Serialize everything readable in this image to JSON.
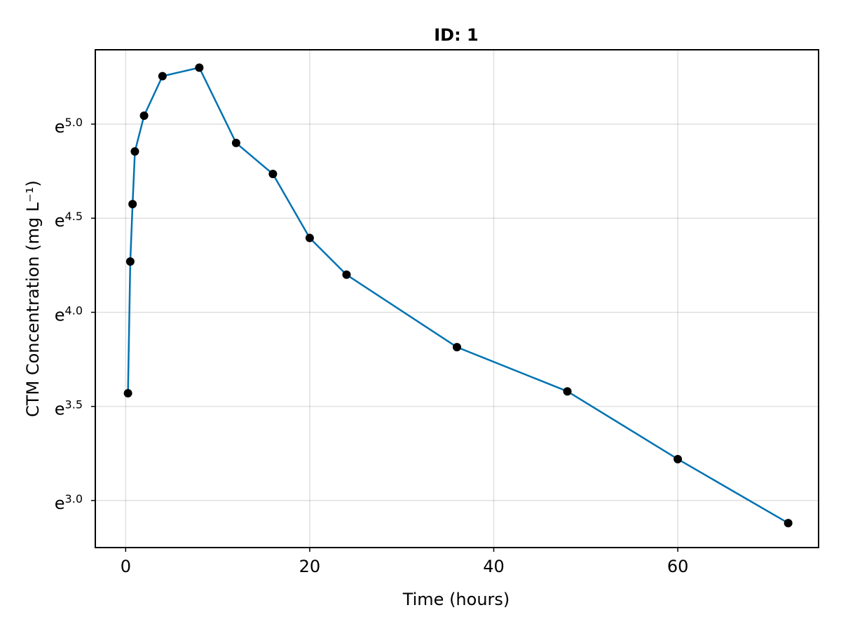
{
  "chart_data": {
    "type": "line",
    "title": "ID: 1",
    "xlabel": "Time (hours)",
    "ylabel": "CTM Concentration (mg L⁻¹)",
    "y_scale": "log",
    "xlim": [
      -3.3,
      75.3
    ],
    "ylim_log": [
      2.75,
      5.395
    ],
    "x_ticks": [
      0,
      20,
      40,
      60
    ],
    "x_tick_labels": [
      "0",
      "20",
      "40",
      "60"
    ],
    "y_ticks_log": [
      3.0,
      3.5,
      4.0,
      4.5,
      5.0
    ],
    "y_tick_base": "e",
    "y_tick_exponents": [
      "3.0",
      "3.5",
      "4.0",
      "4.5",
      "5.0"
    ],
    "grid": true,
    "line_color": "#0072b2",
    "marker_color": "#000000",
    "series": [
      {
        "x": [
          0.25,
          0.5,
          0.75,
          1,
          2,
          4,
          8,
          12,
          16,
          20,
          24,
          36,
          48,
          60,
          72
        ],
        "y_log": [
          3.57,
          4.27,
          4.575,
          4.855,
          5.045,
          5.255,
          5.3,
          4.9,
          4.735,
          4.395,
          4.2,
          3.815,
          3.58,
          3.22,
          2.88
        ]
      }
    ]
  }
}
